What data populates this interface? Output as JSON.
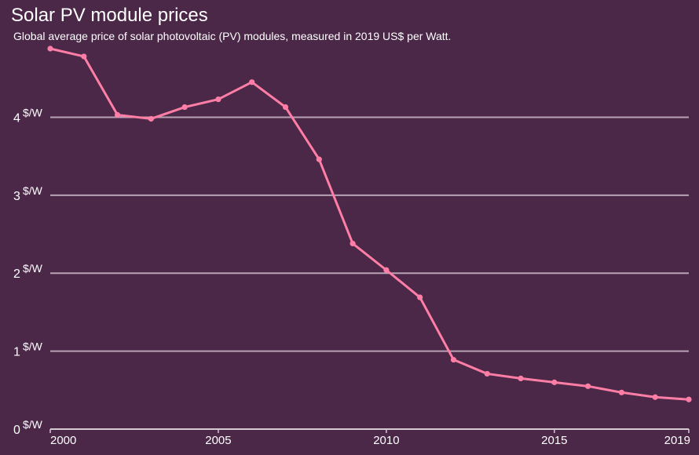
{
  "chart_data": {
    "type": "line",
    "title": "Solar PV module prices",
    "subtitle": "Global average price of solar photovoltaic (PV) modules, measured in 2019 US$ per Watt.",
    "xlabel": "",
    "ylabel": "",
    "xlim": [
      2000,
      2019
    ],
    "ylim": [
      0,
      4.9
    ],
    "y_ticks": [
      {
        "value": 0,
        "label": "0",
        "unit": "$/W"
      },
      {
        "value": 1,
        "label": "1",
        "unit": "$/W"
      },
      {
        "value": 2,
        "label": "2",
        "unit": "$/W"
      },
      {
        "value": 3,
        "label": "3",
        "unit": "$/W"
      },
      {
        "value": 4,
        "label": "4",
        "unit": "$/W"
      }
    ],
    "x_ticks": [
      {
        "value": 2000,
        "label": "2000"
      },
      {
        "value": 2005,
        "label": "2005"
      },
      {
        "value": 2010,
        "label": "2010"
      },
      {
        "value": 2015,
        "label": "2015"
      },
      {
        "value": 2019,
        "label": "2019"
      }
    ],
    "grid": true,
    "series": [
      {
        "color": "#ff7ea6",
        "x": [
          2000,
          2001,
          2002,
          2003,
          2004,
          2005,
          2006,
          2007,
          2008,
          2009,
          2010,
          2011,
          2012,
          2013,
          2014,
          2015,
          2016,
          2017,
          2018,
          2019
        ],
        "y": [
          4.88,
          4.78,
          4.03,
          3.98,
          4.13,
          4.23,
          4.45,
          4.13,
          3.46,
          2.38,
          2.04,
          1.69,
          0.89,
          0.71,
          0.65,
          0.6,
          0.55,
          0.47,
          0.41,
          0.38
        ]
      }
    ]
  },
  "colors": {
    "background": "#4b2748",
    "grid": "#b8a2b5",
    "axis": "#d7cad5",
    "line": "#ff7ea6",
    "text": "#ffffff"
  }
}
